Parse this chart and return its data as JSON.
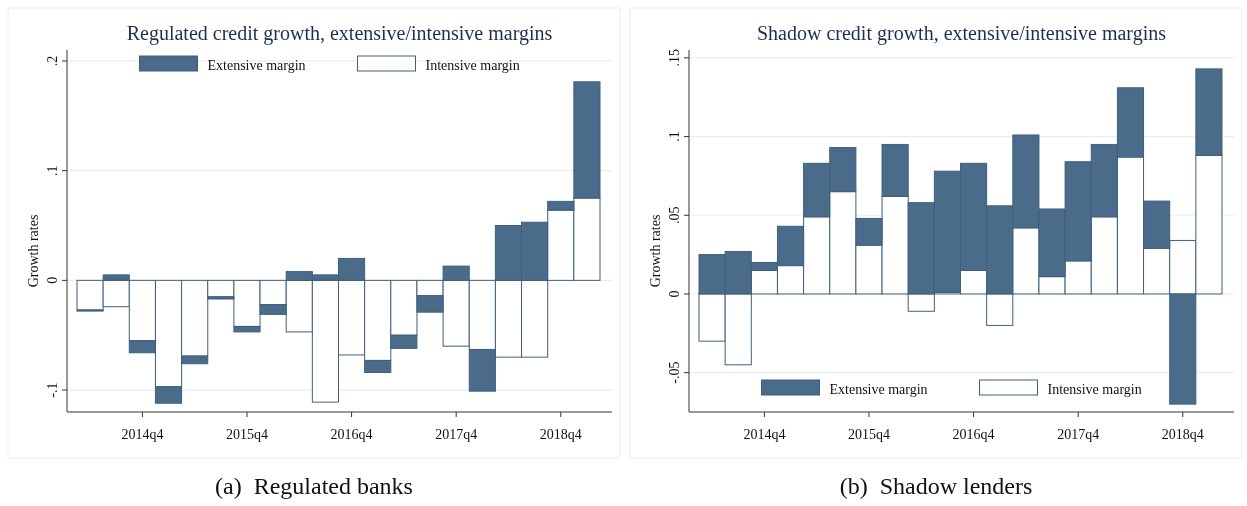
{
  "chart_data": [
    {
      "type": "bar",
      "title": "Regulated credit growth, extensive/intensive margins",
      "ylabel": "Growth rates",
      "stacked": true,
      "grid": "y",
      "legend": "top",
      "categories": [
        null,
        null,
        "2014q4",
        null,
        null,
        null,
        "2015q4",
        null,
        null,
        null,
        "2016q4",
        null,
        null,
        null,
        "2017q4",
        null,
        null,
        null,
        "2018q4",
        null
      ],
      "ylim": [
        -0.12,
        0.21
      ],
      "yticks": [
        {
          "value": -0.1,
          "label": "-.1"
        },
        0,
        {
          "value": 0.1,
          "label": ".1"
        },
        {
          "value": 0.2,
          "label": ".2"
        }
      ],
      "series": [
        {
          "name": "Intensive margin",
          "color": "#ffffff",
          "values": [
            -0.027,
            -0.024,
            -0.055,
            -0.097,
            -0.069,
            -0.015,
            -0.042,
            -0.022,
            -0.047,
            -0.111,
            -0.068,
            -0.073,
            -0.05,
            -0.014,
            -0.06,
            -0.063,
            -0.07,
            -0.07,
            0.064,
            0.075
          ]
        },
        {
          "name": "Extensive margin",
          "color": "#4a6b8a",
          "values": [
            -0.001,
            0.005,
            -0.011,
            -0.015,
            -0.007,
            -0.002,
            -0.005,
            -0.009,
            0.008,
            0.005,
            0.02,
            -0.011,
            -0.012,
            -0.015,
            0.013,
            -0.038,
            0.05,
            0.053,
            0.008,
            0.106
          ]
        }
      ],
      "annotations": [
        "(a)  Regulated banks"
      ]
    },
    {
      "type": "bar",
      "title": "Shadow credit growth, extensive/intensive margins",
      "ylabel": "Growth rates",
      "stacked": true,
      "grid": "y",
      "legend": "bottom",
      "categories": [
        null,
        null,
        "2014q4",
        null,
        null,
        null,
        "2015q4",
        null,
        null,
        null,
        "2016q4",
        null,
        null,
        null,
        "2017q4",
        null,
        null,
        null,
        "2018q4",
        null
      ],
      "ylim": [
        -0.075,
        0.155
      ],
      "yticks": [
        {
          "value": -0.05,
          "label": "-.05"
        },
        0,
        {
          "value": 0.05,
          "label": ".05"
        },
        {
          "value": 0.1,
          "label": ".1"
        },
        {
          "value": 0.15,
          "label": ".15"
        }
      ],
      "series": [
        {
          "name": "Intensive margin",
          "color": "#ffffff",
          "values": [
            -0.03,
            -0.045,
            0.015,
            0.018,
            0.049,
            0.065,
            0.031,
            0.062,
            -0.011,
            0.001,
            0.015,
            -0.02,
            0.042,
            0.011,
            0.021,
            0.049,
            0.087,
            0.029,
            0.034,
            0.088
          ]
        },
        {
          "name": "Extensive margin",
          "color": "#4a6b8a",
          "values": [
            0.025,
            0.027,
            0.005,
            0.025,
            0.034,
            0.028,
            0.017,
            0.033,
            0.058,
            0.077,
            0.068,
            0.056,
            0.059,
            0.043,
            0.063,
            0.046,
            0.044,
            0.03,
            -0.07,
            0.055
          ]
        }
      ],
      "annotations": [
        "(b)  Shadow lenders"
      ]
    }
  ]
}
